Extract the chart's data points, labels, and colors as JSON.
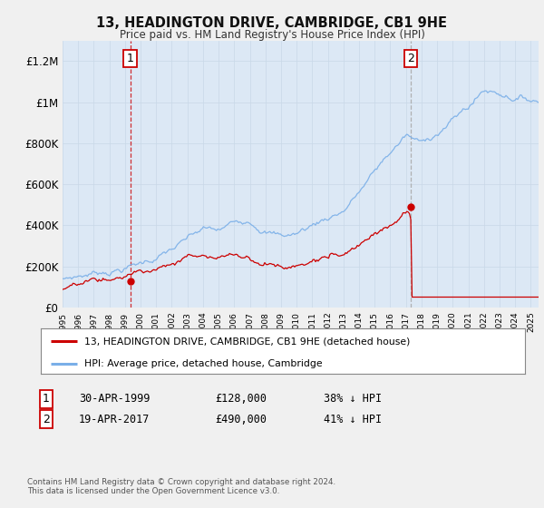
{
  "title": "13, HEADINGTON DRIVE, CAMBRIDGE, CB1 9HE",
  "subtitle": "Price paid vs. HM Land Registry's House Price Index (HPI)",
  "ylim": [
    0,
    1300000
  ],
  "yticks": [
    0,
    200000,
    400000,
    600000,
    800000,
    1000000,
    1200000
  ],
  "ytick_labels": [
    "£0",
    "£200K",
    "£400K",
    "£600K",
    "£800K",
    "£1M",
    "£1.2M"
  ],
  "background_color": "#f0f0f0",
  "plot_bg_color": "#dce8f5",
  "hpi_color": "#7aafe8",
  "price_color": "#cc0000",
  "vline1_color": "#cc0000",
  "vline2_color": "#aaaaaa",
  "vline1_style": "--",
  "vline2_style": "--",
  "purchase1_date_x": 1999.33,
  "purchase1_price": 128000,
  "purchase2_date_x": 2017.3,
  "purchase2_price": 490000,
  "legend1_text": "13, HEADINGTON DRIVE, CAMBRIDGE, CB1 9HE (detached house)",
  "legend2_text": "HPI: Average price, detached house, Cambridge",
  "table_row1": [
    "1",
    "30-APR-1999",
    "£128,000",
    "38% ↓ HPI"
  ],
  "table_row2": [
    "2",
    "19-APR-2017",
    "£490,000",
    "41% ↓ HPI"
  ],
  "footer": "Contains HM Land Registry data © Crown copyright and database right 2024.\nThis data is licensed under the Open Government Licence v3.0.",
  "xmin": 1995,
  "xmax": 2025.5
}
